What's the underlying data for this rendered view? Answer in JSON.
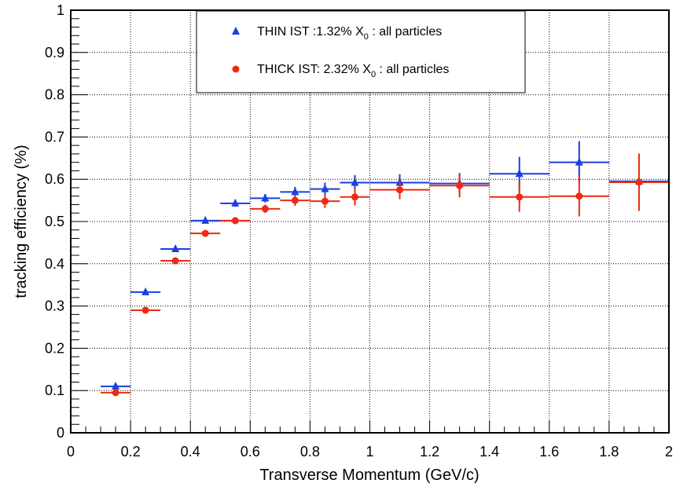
{
  "chart_data": {
    "type": "scatter",
    "title": "",
    "xlabel": "Transverse Momentum  (GeV/c)",
    "ylabel": "tracking efficiency (%)",
    "xlim": [
      0,
      2
    ],
    "ylim": [
      0,
      1
    ],
    "grid": true,
    "legend_position": "top-center",
    "x_ticks": [
      "0",
      "0.2",
      "0.4",
      "0.6",
      "0.8",
      "1",
      "1.2",
      "1.4",
      "1.6",
      "1.8",
      "2"
    ],
    "y_ticks": [
      "0",
      "0.1",
      "0.2",
      "0.3",
      "0.4",
      "0.5",
      "0.6",
      "0.7",
      "0.8",
      "0.9",
      "1"
    ],
    "series": [
      {
        "name": "THIN IST :1.32% X0 : all particles",
        "legend_main": "THIN IST :1.32% X",
        "legend_sub": "0",
        "legend_tail": " : all particles",
        "marker": "triangle",
        "color": "#1a3fe0",
        "points": [
          {
            "x": 0.15,
            "xlo": 0.1,
            "xhi": 0.2,
            "y": 0.11,
            "err": 0.0
          },
          {
            "x": 0.25,
            "xlo": 0.2,
            "xhi": 0.3,
            "y": 0.333,
            "err": 0.0
          },
          {
            "x": 0.35,
            "xlo": 0.3,
            "xhi": 0.4,
            "y": 0.435,
            "err": 0.004
          },
          {
            "x": 0.45,
            "xlo": 0.4,
            "xhi": 0.5,
            "y": 0.502,
            "err": 0.006
          },
          {
            "x": 0.55,
            "xlo": 0.5,
            "xhi": 0.6,
            "y": 0.543,
            "err": 0.008
          },
          {
            "x": 0.65,
            "xlo": 0.6,
            "xhi": 0.7,
            "y": 0.555,
            "err": 0.01
          },
          {
            "x": 0.75,
            "xlo": 0.7,
            "xhi": 0.8,
            "y": 0.57,
            "err": 0.012
          },
          {
            "x": 0.85,
            "xlo": 0.8,
            "xhi": 0.9,
            "y": 0.577,
            "err": 0.015
          },
          {
            "x": 0.95,
            "xlo": 0.9,
            "xhi": 1.0,
            "y": 0.592,
            "err": 0.018
          },
          {
            "x": 1.1,
            "xlo": 1.0,
            "xhi": 1.2,
            "y": 0.592,
            "err": 0.02
          },
          {
            "x": 1.3,
            "xlo": 1.2,
            "xhi": 1.4,
            "y": 0.59,
            "err": 0.025
          },
          {
            "x": 1.5,
            "xlo": 1.4,
            "xhi": 1.6,
            "y": 0.613,
            "err": 0.04
          },
          {
            "x": 1.7,
            "xlo": 1.6,
            "xhi": 1.8,
            "y": 0.64,
            "err": 0.05
          },
          {
            "x": 1.9,
            "xlo": 1.8,
            "xhi": 2.0,
            "y": 0.595,
            "err": 0.0
          }
        ]
      },
      {
        "name": "THICK IST: 2.32% X0 : all particles",
        "legend_main": "THICK IST: 2.32% X",
        "legend_sub": "0",
        "legend_tail": " : all particles",
        "marker": "circle",
        "color": "#ee2a10",
        "points": [
          {
            "x": 0.15,
            "xlo": 0.1,
            "xhi": 0.2,
            "y": 0.095,
            "err": 0.0
          },
          {
            "x": 0.25,
            "xlo": 0.2,
            "xhi": 0.3,
            "y": 0.29,
            "err": 0.0
          },
          {
            "x": 0.35,
            "xlo": 0.3,
            "xhi": 0.4,
            "y": 0.407,
            "err": 0.004
          },
          {
            "x": 0.45,
            "xlo": 0.4,
            "xhi": 0.5,
            "y": 0.472,
            "err": 0.006
          },
          {
            "x": 0.55,
            "xlo": 0.5,
            "xhi": 0.6,
            "y": 0.502,
            "err": 0.008
          },
          {
            "x": 0.65,
            "xlo": 0.6,
            "xhi": 0.7,
            "y": 0.53,
            "err": 0.01
          },
          {
            "x": 0.75,
            "xlo": 0.7,
            "xhi": 0.8,
            "y": 0.55,
            "err": 0.013
          },
          {
            "x": 0.85,
            "xlo": 0.8,
            "xhi": 0.9,
            "y": 0.548,
            "err": 0.016
          },
          {
            "x": 0.95,
            "xlo": 0.9,
            "xhi": 1.0,
            "y": 0.558,
            "err": 0.02
          },
          {
            "x": 1.1,
            "xlo": 1.0,
            "xhi": 1.2,
            "y": 0.575,
            "err": 0.022
          },
          {
            "x": 1.3,
            "xlo": 1.2,
            "xhi": 1.4,
            "y": 0.585,
            "err": 0.028
          },
          {
            "x": 1.5,
            "xlo": 1.4,
            "xhi": 1.6,
            "y": 0.558,
            "err": 0.035
          },
          {
            "x": 1.7,
            "xlo": 1.6,
            "xhi": 1.8,
            "y": 0.56,
            "err": 0.048
          },
          {
            "x": 1.9,
            "xlo": 1.8,
            "xhi": 2.0,
            "y": 0.593,
            "err": 0.068
          }
        ]
      }
    ]
  }
}
